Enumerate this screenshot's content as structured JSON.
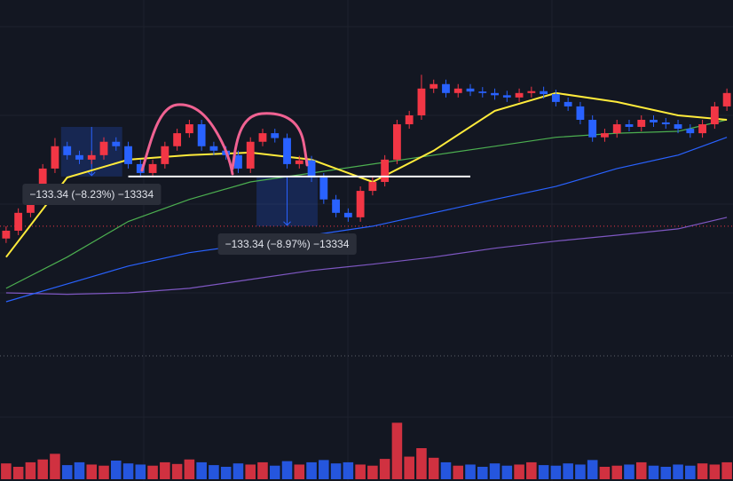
{
  "chart_data": {
    "type": "candlestick",
    "ylim": [
      840,
      1961
    ],
    "volume_ylim": [
      0,
      110
    ],
    "up_color": "#f23645",
    "down_color": "#2962ff",
    "open": [
      1320,
      1341,
      1389,
      1448,
      1508,
      1568,
      1544,
      1532,
      1544,
      1580,
      1568,
      1520,
      1496,
      1520,
      1568,
      1603,
      1627,
      1568,
      1556,
      1544,
      1508,
      1580,
      1603,
      1590,
      1520,
      1530,
      1484,
      1425,
      1389,
      1377,
      1448,
      1472,
      1532,
      1627,
      1651,
      1723,
      1735,
      1711,
      1723,
      1715,
      1711,
      1705,
      1699,
      1711,
      1716,
      1708,
      1687,
      1675,
      1639,
      1592,
      1603,
      1627,
      1620,
      1639,
      1632,
      1627,
      1615,
      1603,
      1627,
      1675
    ],
    "high": [
      1353,
      1401,
      1460,
      1520,
      1590,
      1580,
      1556,
      1556,
      1592,
      1592,
      1580,
      1532,
      1532,
      1580,
      1615,
      1639,
      1639,
      1580,
      1568,
      1556,
      1592,
      1615,
      1615,
      1602,
      1542,
      1542,
      1496,
      1437,
      1401,
      1460,
      1484,
      1544,
      1639,
      1663,
      1760,
      1747,
      1747,
      1735,
      1735,
      1727,
      1723,
      1717,
      1723,
      1728,
      1728,
      1720,
      1699,
      1687,
      1651,
      1615,
      1639,
      1639,
      1651,
      1651,
      1644,
      1639,
      1627,
      1639,
      1687,
      1723
    ],
    "low": [
      1308,
      1329,
      1377,
      1436,
      1496,
      1532,
      1520,
      1520,
      1532,
      1556,
      1508,
      1484,
      1484,
      1508,
      1556,
      1591,
      1556,
      1544,
      1532,
      1496,
      1496,
      1568,
      1578,
      1508,
      1508,
      1472,
      1413,
      1377,
      1365,
      1365,
      1436,
      1460,
      1520,
      1615,
      1639,
      1711,
      1699,
      1699,
      1703,
      1699,
      1693,
      1687,
      1687,
      1699,
      1696,
      1675,
      1663,
      1627,
      1580,
      1580,
      1591,
      1608,
      1608,
      1620,
      1615,
      1603,
      1591,
      1591,
      1615,
      1663
    ],
    "close": [
      1341,
      1389,
      1448,
      1508,
      1568,
      1544,
      1532,
      1544,
      1580,
      1568,
      1520,
      1496,
      1520,
      1568,
      1603,
      1627,
      1568,
      1556,
      1544,
      1508,
      1580,
      1603,
      1590,
      1520,
      1530,
      1484,
      1425,
      1389,
      1377,
      1448,
      1472,
      1532,
      1627,
      1651,
      1723,
      1735,
      1711,
      1723,
      1715,
      1711,
      1705,
      1699,
      1711,
      1716,
      1708,
      1687,
      1675,
      1639,
      1592,
      1603,
      1627,
      1620,
      1639,
      1632,
      1627,
      1615,
      1603,
      1627,
      1675,
      1711
    ],
    "volume": [
      28,
      22,
      30,
      35,
      45,
      25,
      30,
      26,
      24,
      33,
      28,
      26,
      24,
      30,
      27,
      35,
      30,
      25,
      22,
      28,
      26,
      30,
      24,
      32,
      26,
      30,
      34,
      28,
      30,
      26,
      24,
      36,
      100,
      40,
      55,
      38,
      30,
      24,
      26,
      22,
      28,
      24,
      26,
      30,
      25,
      24,
      28,
      26,
      34,
      22,
      24,
      26,
      30,
      24,
      22,
      26,
      24,
      28,
      26,
      30
    ],
    "ma_x": [
      0,
      5,
      10,
      15,
      20,
      25,
      30,
      35,
      40,
      45,
      50,
      55,
      59
    ],
    "moving_averages": [
      {
        "color": "#7e57c2",
        "values": [
          1174,
          1170,
          1174,
          1186,
          1210,
          1234,
          1251,
          1270,
          1294,
          1313,
          1329,
          1346,
          1377
        ]
      },
      {
        "color": "#2962ff",
        "values": [
          1150,
          1198,
          1246,
          1282,
          1305,
          1329,
          1353,
          1389,
          1425,
          1460,
          1508,
          1544,
          1592
        ]
      },
      {
        "color": "#4caf50",
        "values": [
          1186,
          1270,
          1366,
          1425,
          1472,
          1496,
          1520,
          1544,
          1568,
          1592,
          1603,
          1608,
          1639
        ]
      },
      {
        "color": "#ffeb3b",
        "values": [
          1270,
          1484,
          1532,
          1544,
          1551,
          1532,
          1472,
          1556,
          1663,
          1711,
          1687,
          1651,
          1639
        ]
      }
    ],
    "hline": {
      "value": 1486.66,
      "from": 10,
      "to": 38
    },
    "price_line": 1353,
    "measures": [
      {
        "from": 4.5,
        "to": 9.5,
        "start": 1620,
        "end": 1486.66,
        "label": "−133.34 (−8.23%) −13334"
      },
      {
        "from": 20.5,
        "to": 25.5,
        "start": 1486.66,
        "end": 1353.32,
        "label": "−133.34 (−8.97%) −13334"
      }
    ]
  }
}
